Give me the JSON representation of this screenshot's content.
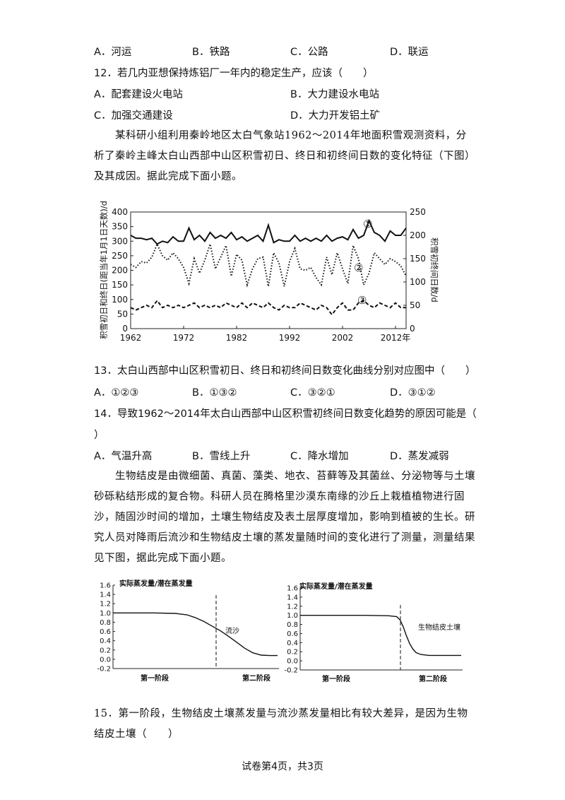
{
  "q11": {
    "opts": [
      "A．河运",
      "B．铁路",
      "C．公路",
      "D．联运"
    ]
  },
  "q12": {
    "stem": "12．若几内亚想保持炼铝厂一年内的稳定生产，应该（　　）",
    "opts": [
      "A．配套建设火电站",
      "B．大力建设水电站",
      "C．加强交通建设",
      "D．大力开发铝土矿"
    ]
  },
  "passage1": "某科研小组利用秦岭地区太白气象站1962～2014年地面积雪观测资料，分析了秦岭主峰太白山西部中山区积雪初日、终日和初终间日数的变化特征（下图）及其成因。据此完成下面小题。",
  "chart1": {
    "ylabel_left": "积雪初日和终日(距当年1月1日天数)/d",
    "ylabel_right": "积雪初终间日数/d",
    "left_ticks": [
      "400",
      "350",
      "300",
      "250",
      "200",
      "150",
      "100",
      "50",
      "0"
    ],
    "right_ticks": [
      "250",
      "200",
      "150",
      "100",
      "50",
      "0"
    ],
    "x_ticks": [
      "1962",
      "1972",
      "1982",
      "1992",
      "2002",
      "2012年"
    ],
    "markers": [
      "①",
      "②",
      "③"
    ]
  },
  "chart_data": [
    {
      "type": "line",
      "x": [
        1962,
        1963,
        1964,
        1965,
        1966,
        1967,
        1968,
        1969,
        1970,
        1971,
        1972,
        1973,
        1974,
        1975,
        1976,
        1977,
        1978,
        1979,
        1980,
        1981,
        1982,
        1983,
        1984,
        1985,
        1986,
        1987,
        1988,
        1989,
        1990,
        1991,
        1992,
        1993,
        1994,
        1995,
        1996,
        1997,
        1998,
        1999,
        2000,
        2001,
        2002,
        2003,
        2004,
        2005,
        2006,
        2007,
        2008,
        2009,
        2010,
        2011,
        2012,
        2013,
        2014
      ],
      "series": [
        {
          "name": "①",
          "axis": "left",
          "style": "solid",
          "values": [
            320,
            310,
            310,
            305,
            310,
            290,
            300,
            295,
            315,
            300,
            300,
            345,
            305,
            320,
            300,
            330,
            310,
            320,
            310,
            330,
            305,
            315,
            300,
            310,
            320,
            300,
            355,
            295,
            305,
            300,
            300,
            320,
            300,
            310,
            300,
            310,
            300,
            320,
            300,
            310,
            315,
            305,
            340,
            310,
            320,
            370,
            330,
            320,
            300,
            335,
            320,
            320,
            345
          ]
        },
        {
          "name": "②",
          "axis": "left",
          "style": "dotted",
          "values": [
            220,
            210,
            230,
            225,
            245,
            290,
            250,
            235,
            260,
            240,
            210,
            155,
            240,
            190,
            235,
            290,
            205,
            245,
            285,
            180,
            255,
            235,
            150,
            205,
            240,
            245,
            145,
            260,
            225,
            145,
            230,
            275,
            205,
            200,
            210,
            175,
            150,
            245,
            185,
            260,
            205,
            155,
            285,
            240,
            150,
            190,
            260,
            240,
            220,
            240,
            230,
            215,
            180
          ]
        },
        {
          "name": "③",
          "axis": "right",
          "style": "dashed",
          "values": [
            45,
            40,
            45,
            50,
            45,
            60,
            45,
            50,
            45,
            50,
            45,
            50,
            55,
            45,
            50,
            45,
            50,
            45,
            55,
            50,
            45,
            55,
            45,
            55,
            50,
            45,
            55,
            45,
            40,
            50,
            45,
            45,
            55,
            50,
            45,
            40,
            50,
            45,
            30,
            45,
            55,
            40,
            40,
            55,
            60,
            50,
            45,
            55,
            50,
            45,
            55,
            45,
            45
          ]
        }
      ],
      "ylim_left": [
        0,
        400
      ],
      "ylim_right": [
        0,
        250
      ],
      "grid": false
    },
    {
      "type": "line",
      "ylabel": "实际蒸发量/潜在蒸发量",
      "yticks": [
        "1.6",
        "1.4",
        "1.2",
        "1.0",
        "0.8",
        "0.6",
        "0.4",
        "0.2",
        "0.0",
        "-0.2"
      ],
      "xlabels": [
        "第一阶段",
        "第二阶段"
      ],
      "annotation": "流沙",
      "x": [
        0,
        0.12,
        0.25,
        0.38,
        0.45,
        0.5,
        0.55,
        0.6,
        0.65,
        0.7,
        0.75,
        0.8,
        0.85,
        0.9,
        0.95,
        1.0
      ],
      "values": [
        1.0,
        1.0,
        1.0,
        0.99,
        0.96,
        0.9,
        0.82,
        0.72,
        0.62,
        0.5,
        0.37,
        0.24,
        0.14,
        0.09,
        0.08,
        0.08
      ],
      "ylim": [
        -0.2,
        1.6
      ]
    },
    {
      "type": "line",
      "ylabel": "实际蒸发量/潜在蒸发量",
      "yticks": [
        "1.6",
        "1.4",
        "1.2",
        "1.0",
        "0.8",
        "0.6",
        "0.4",
        "0.2",
        "0.0",
        "-0.2"
      ],
      "xlabels": [
        "第一阶段",
        "第二阶段"
      ],
      "annotation": "生物结皮土壤",
      "x": [
        0,
        0.2,
        0.4,
        0.55,
        0.6,
        0.62,
        0.64,
        0.66,
        0.68,
        0.7,
        0.72,
        0.75,
        0.8,
        0.9,
        1.0
      ],
      "values": [
        1.0,
        1.0,
        1.0,
        0.99,
        0.97,
        0.9,
        0.75,
        0.55,
        0.38,
        0.26,
        0.18,
        0.14,
        0.12,
        0.12,
        0.12
      ],
      "ylim": [
        -0.2,
        1.6
      ]
    }
  ],
  "q13": {
    "stem": "13．太白山西部中山区积雪初日、终日和初终间日数变化曲线分别对应图中（　　）",
    "opts": [
      "A．①②③",
      "B．①③②",
      "C．③②①",
      "D．③①②"
    ]
  },
  "q14": {
    "stem1": "14．导致1962～2014年太白山西部中山区积雪初终间日数变化趋势的原因可能是（",
    "stem2": "）",
    "opts": [
      "A．气温升高",
      "B．雪线上升",
      "C．降水增加",
      "D．蒸发减弱"
    ]
  },
  "passage2": "生物结皮是由微细菌、真菌、藻类、地衣、苔藓等及其菌丝、分泌物等与土壤砂砾粘结形成的复合物。科研人员在腾格里沙漠东南缘的沙丘上栽植植物进行固沙，随固沙时间的增加，土壤生物结皮及表土层厚度增加，影响到植被的生长。研究人员对降雨后流沙和生物结皮土壤的蒸发量随时间的变化进行了测量，测量结果见下图，据此完成下面小题。",
  "q15": {
    "stem": "15．第一阶段，生物结皮土壤蒸发量与流沙蒸发量相比有较大差异，是因为生物结皮土壤（　　）"
  },
  "footer": "试卷第4页，共3页"
}
